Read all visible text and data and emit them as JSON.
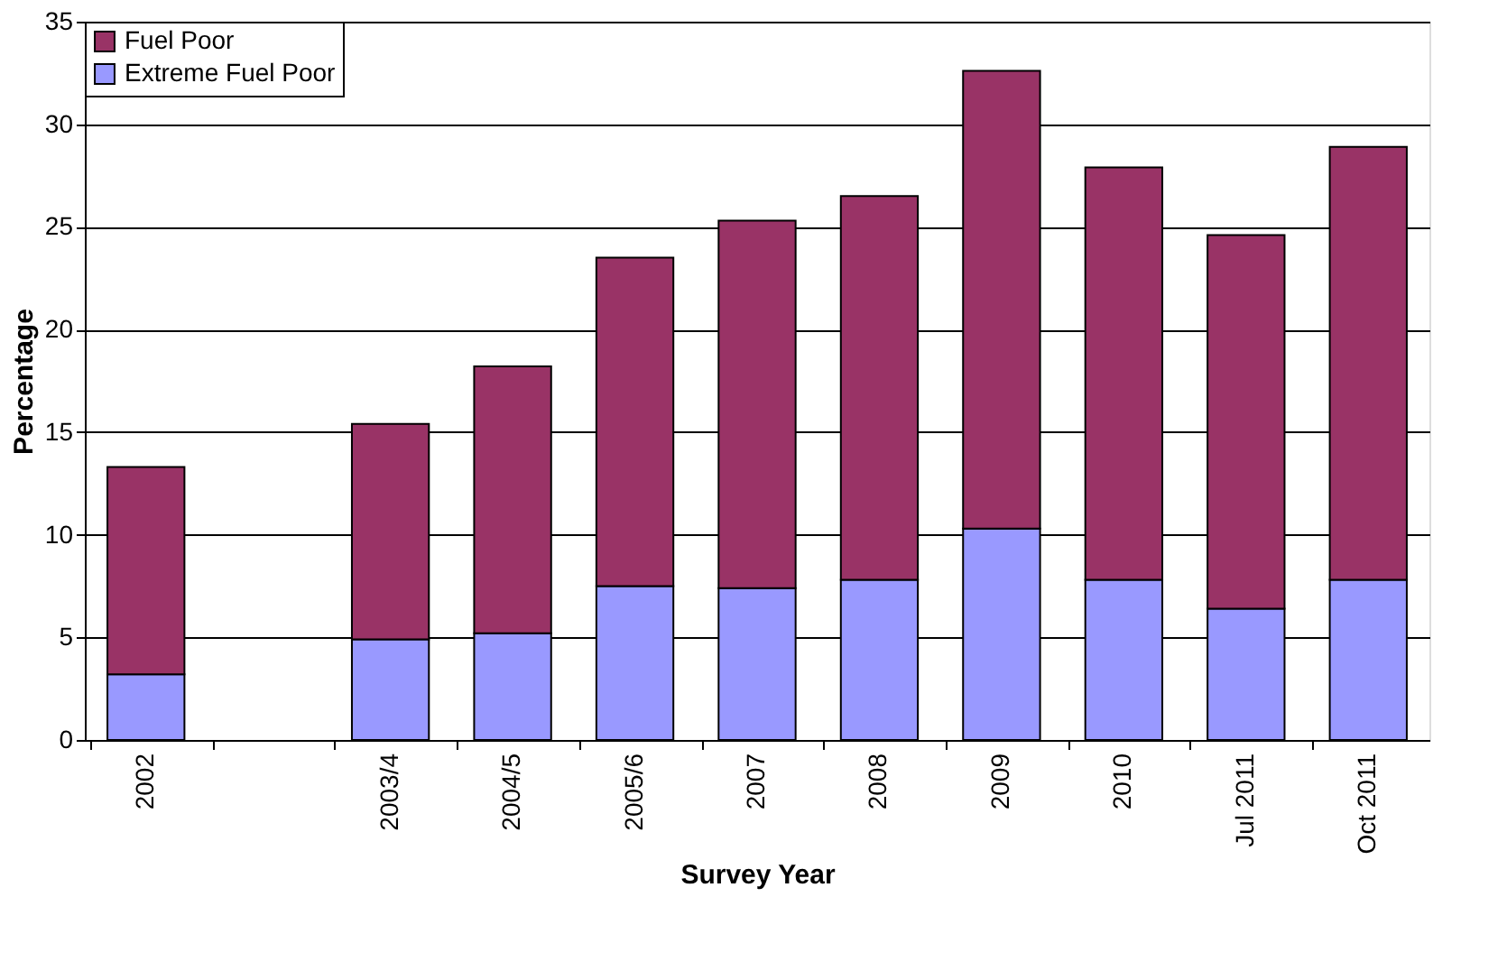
{
  "chart_data": {
    "type": "bar",
    "stacked": true,
    "xlabel": "Survey Year",
    "ylabel": "Percentage",
    "categories": [
      "2002",
      null,
      "2003/4",
      "2004/5",
      "2005/6",
      "2007",
      "2008",
      "2009",
      "2010",
      "Jul 2011",
      "Oct 2011"
    ],
    "series": [
      {
        "name": "Extreme Fuel Poor",
        "color": "#9999ff",
        "values": [
          3.2,
          null,
          4.9,
          5.2,
          7.5,
          7.4,
          7.8,
          10.3,
          7.8,
          6.4,
          7.8
        ]
      },
      {
        "name": "Fuel Poor",
        "color": "#993366",
        "values": [
          10.1,
          null,
          10.5,
          13.0,
          16.0,
          17.9,
          18.7,
          22.3,
          20.1,
          18.2,
          21.1
        ]
      }
    ],
    "ylim": [
      0,
      35
    ],
    "yticks": [
      0,
      5,
      10,
      15,
      20,
      25,
      30,
      35
    ],
    "grid": "y",
    "legend": "top left"
  }
}
